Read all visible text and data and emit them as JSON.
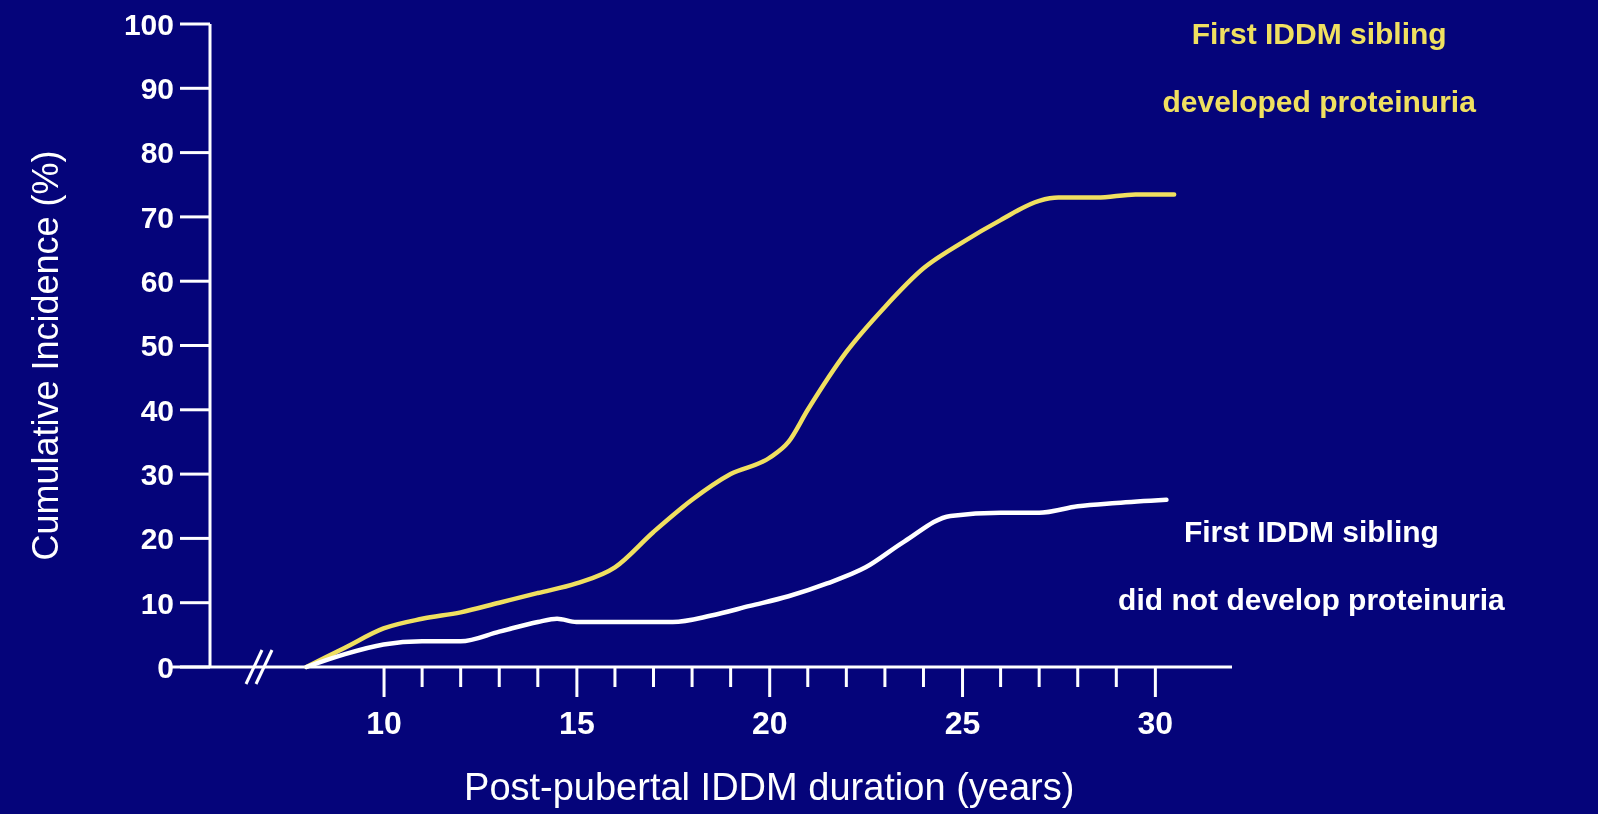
{
  "chart_data": {
    "type": "line",
    "xlabel": "Post-pubertal IDDM duration (years)",
    "ylabel": "Cumulative Incidence (%)",
    "xlim": [
      5.5,
      32
    ],
    "ylim": [
      0,
      100
    ],
    "xticks": [
      10,
      15,
      20,
      25,
      30
    ],
    "yticks": [
      0,
      10,
      20,
      30,
      40,
      50,
      60,
      70,
      80,
      90,
      100
    ],
    "grid": false,
    "legend": false,
    "marker": "none",
    "line_style": "solid",
    "series": [
      {
        "name": "First IDDM sibling developed proteinuria",
        "color": "#f0e060",
        "x": [
          8,
          9,
          10,
          11,
          12,
          13,
          14,
          15,
          16,
          17,
          18,
          19,
          20,
          20.5,
          21,
          22,
          23,
          24,
          25,
          26,
          27,
          27.5,
          28.5,
          29.5,
          30.5
        ],
        "values": [
          0,
          3,
          6,
          7.5,
          8.5,
          10,
          11.5,
          13,
          15.5,
          21,
          26,
          30,
          32.5,
          35,
          40,
          49,
          56,
          62,
          66,
          69.5,
          72.5,
          73,
          73,
          73.5,
          73.5
        ]
      },
      {
        "name": "First IDDM sibling did not develop proteinuria",
        "color": "#ffffff",
        "x": [
          8,
          9,
          10,
          11,
          12,
          13,
          14,
          14.5,
          15,
          16,
          17.5,
          18.5,
          19.5,
          20.5,
          21.5,
          22.5,
          23.5,
          24.7,
          26,
          27,
          28,
          29,
          30.3
        ],
        "values": [
          0,
          2,
          3.5,
          4,
          4,
          5.5,
          7,
          7.5,
          7,
          7,
          7,
          8,
          9.5,
          11,
          13,
          15.5,
          19.5,
          23.5,
          24,
          24,
          25,
          25.5,
          26
        ]
      }
    ]
  }
}
